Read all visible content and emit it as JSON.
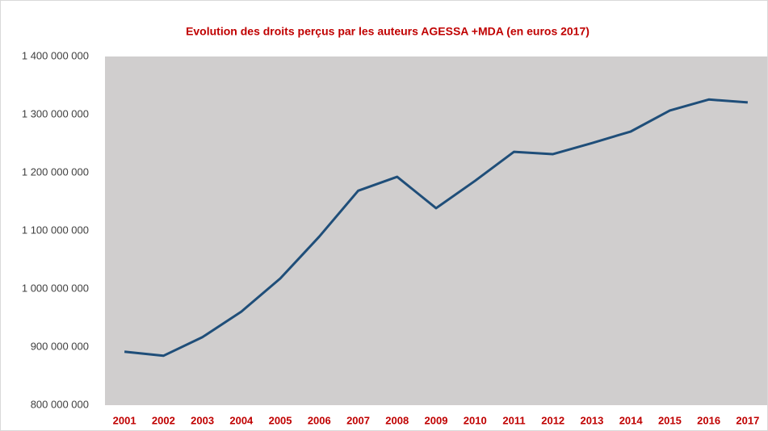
{
  "chart_data": {
    "type": "line",
    "title": "Evolution des droits perçus par les auteurs AGESSA +MDA (en euros 2017)",
    "categories": [
      "2001",
      "2002",
      "2003",
      "2004",
      "2005",
      "2006",
      "2007",
      "2008",
      "2009",
      "2010",
      "2011",
      "2012",
      "2013",
      "2014",
      "2015",
      "2016",
      "2017"
    ],
    "series": [
      {
        "color": "#1f4e79",
        "values": [
          892000000,
          885000000,
          917000000,
          961000000,
          1018000000,
          1090000000,
          1169000000,
          1193000000,
          1139000000,
          1186000000,
          1236000000,
          1232000000,
          1251000000,
          1271000000,
          1307000000,
          1326000000,
          1321000000
        ]
      }
    ],
    "ylim": [
      800000000,
      1400000000
    ],
    "yticks": [
      {
        "value": 800000000,
        "label": "800 000 000"
      },
      {
        "value": 900000000,
        "label": "900 000 000"
      },
      {
        "value": 1000000000,
        "label": "1 000 000 000"
      },
      {
        "value": 1100000000,
        "label": "1 100 000 000"
      },
      {
        "value": 1200000000,
        "label": "1 200 000 000"
      },
      {
        "value": 1300000000,
        "label": "1 300 000 000"
      },
      {
        "value": 1400000000,
        "label": "1 400 000 000"
      }
    ],
    "plot_background": "#d0cece",
    "grid": false
  }
}
